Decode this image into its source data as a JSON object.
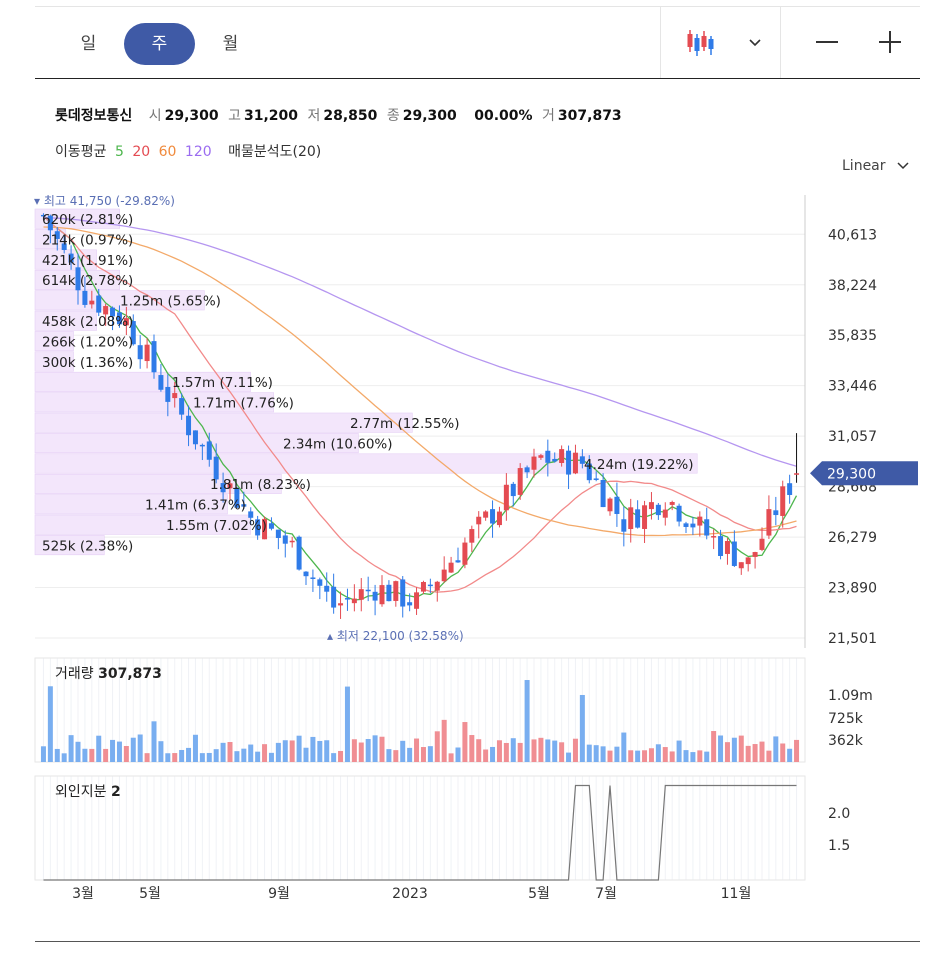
{
  "tabs": [
    {
      "label": "일"
    },
    {
      "label": "주"
    },
    {
      "label": "월"
    }
  ],
  "active_tab": "주",
  "toolbar": {
    "chart_type_icon": "candlestick-icon",
    "dropdown_icon": "chevron-down-icon",
    "zoom_out_icon": "minus-icon",
    "zoom_in_icon": "plus-icon"
  },
  "stock": {
    "name": "롯데정보통신",
    "open_label": "시",
    "open": "29,300",
    "high_label": "고",
    "high": "31,200",
    "low_label": "저",
    "low": "28,850",
    "close_label": "종",
    "close": "29,300",
    "change": "0",
    "change_pct": "0.00%",
    "volume_label": "거",
    "volume": "307,873"
  },
  "ma": {
    "label": "이동평균",
    "p5": "5",
    "p20": "20",
    "p60": "60",
    "p120": "120",
    "vp_label": "매물분석도(20)"
  },
  "scale_label": "Linear",
  "colors": {
    "up": "#e44b52",
    "down": "#2f7be8",
    "ma5": "#4db64d",
    "ma20": "#f28a8a",
    "ma60": "#f3a969",
    "ma120": "#b596f0",
    "price_tag": "#3f5aa6"
  },
  "chart_data": {
    "type": "candlestick",
    "y_ticks": [
      "40,613",
      "38,224",
      "35,835",
      "33,446",
      "31,057",
      "28,668",
      "26,279",
      "23,890",
      "21,501"
    ],
    "ylim": [
      21501,
      42000
    ],
    "x_ticks": [
      "3월",
      "5월",
      "9월",
      "2023",
      "5월",
      "7월",
      "11월"
    ],
    "current_price": "29,300",
    "high_marker": {
      "label": "최고",
      "value": "41,750",
      "pct": "(-29.82%)"
    },
    "low_marker": {
      "label": "최저",
      "value": "22,100",
      "pct": "(32.58%)"
    },
    "volume_profile": [
      {
        "label": "620k (2.81%)",
        "fraction": 0.11
      },
      {
        "label": "214k (0.97%)",
        "fraction": 0.04
      },
      {
        "label": "421k (1.91%)",
        "fraction": 0.08
      },
      {
        "label": "614k (2.78%)",
        "fraction": 0.11
      },
      {
        "label": "1.25m (5.65%)",
        "fraction": 0.22
      },
      {
        "label": "458k (2.08%)",
        "fraction": 0.08
      },
      {
        "label": "266k (1.20%)",
        "fraction": 0.05
      },
      {
        "label": "300k (1.36%)",
        "fraction": 0.05
      },
      {
        "label": "1.57m (7.11%)",
        "fraction": 0.28
      },
      {
        "label": "1.71m (7.76%)",
        "fraction": 0.31
      },
      {
        "label": "2.77m (12.55%)",
        "fraction": 0.49
      },
      {
        "label": "2.34m (10.60%)",
        "fraction": 0.42
      },
      {
        "label": "4.24m (19.22%)",
        "fraction": 0.86
      },
      {
        "label": "1.81m (8.23%)",
        "fraction": 0.32
      },
      {
        "label": "1.41m (6.37%)",
        "fraction": 0.25
      },
      {
        "label": "1.55m (7.02%)",
        "fraction": 0.28
      },
      {
        "label": "525k (2.38%)",
        "fraction": 0.09
      }
    ],
    "volume_title": "거래량",
    "volume_value": "307,873",
    "volume_ticks": [
      "1.09m",
      "725k",
      "362k"
    ],
    "foreign_title": "외인지분",
    "foreign_value": "2",
    "foreign_ticks": [
      "2.0",
      "1.5"
    ]
  }
}
